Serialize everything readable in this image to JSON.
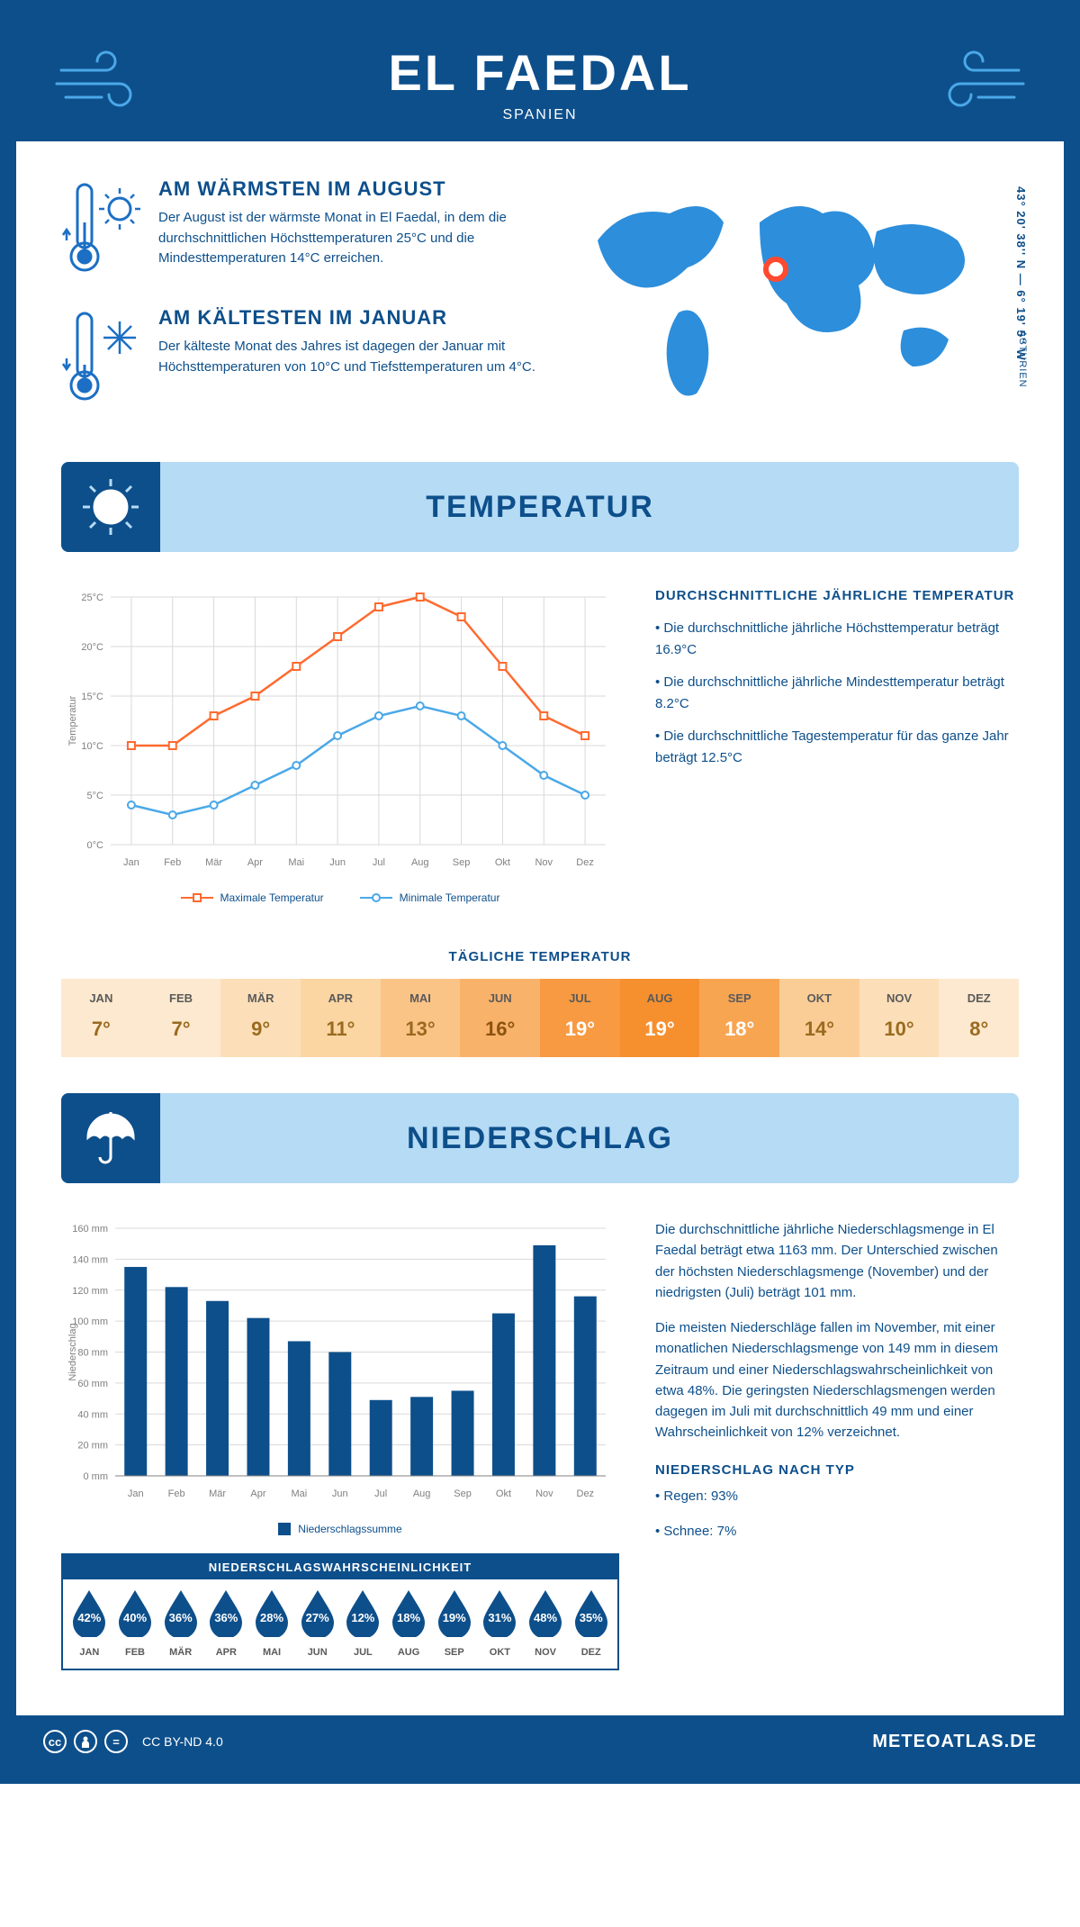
{
  "header": {
    "title": "EL FAEDAL",
    "subtitle": "SPANIEN"
  },
  "facts": {
    "warm": {
      "title": "AM WÄRMSTEN IM AUGUST",
      "text": "Der August ist der wärmste Monat in El Faedal, in dem die durchschnittlichen Höchsttemperaturen 25°C und die Mindesttemperaturen 14°C erreichen."
    },
    "cold": {
      "title": "AM KÄLTESTEN IM JANUAR",
      "text": "Der kälteste Monat des Jahres ist dagegen der Januar mit Höchsttemperaturen von 10°C und Tiefsttemperaturen um 4°C."
    }
  },
  "map": {
    "coords": "43° 20' 38'' N — 6° 19' 5'' W",
    "region": "ASTURIEN"
  },
  "sections": {
    "temp": "TEMPERATUR",
    "precip": "NIEDERSCHLAG"
  },
  "temp_chart": {
    "type": "line",
    "months": [
      "Jan",
      "Feb",
      "Mär",
      "Apr",
      "Mai",
      "Jun",
      "Jul",
      "Aug",
      "Sep",
      "Okt",
      "Nov",
      "Dez"
    ],
    "max": [
      10,
      10,
      13,
      15,
      18,
      21,
      24,
      25,
      23,
      18,
      13,
      11
    ],
    "min": [
      4,
      3,
      4,
      6,
      8,
      11,
      13,
      14,
      13,
      10,
      7,
      5
    ],
    "ylim": [
      0,
      25
    ],
    "ytick_step": 5,
    "ylabel": "Temperatur",
    "max_color": "#ff6a2f",
    "min_color": "#4aa8e8",
    "grid_color": "#d9d9d9",
    "axis_color": "#808080",
    "legend": {
      "max": "Maximale Temperatur",
      "min": "Minimale Temperatur"
    }
  },
  "temp_info": {
    "title": "DURCHSCHNITTLICHE JÄHRLICHE TEMPERATUR",
    "b1": "• Die durchschnittliche jährliche Höchsttemperatur beträgt 16.9°C",
    "b2": "• Die durchschnittliche jährliche Mindesttemperatur beträgt 8.2°C",
    "b3": "• Die durchschnittliche Tagestemperatur für das ganze Jahr beträgt 12.5°C"
  },
  "daily": {
    "title": "TÄGLICHE TEMPERATUR",
    "months": [
      "JAN",
      "FEB",
      "MÄR",
      "APR",
      "MAI",
      "JUN",
      "JUL",
      "AUG",
      "SEP",
      "OKT",
      "NOV",
      "DEZ"
    ],
    "values": [
      "7°",
      "7°",
      "9°",
      "11°",
      "13°",
      "16°",
      "19°",
      "19°",
      "18°",
      "14°",
      "10°",
      "8°"
    ],
    "bg_colors": [
      "#fde9cf",
      "#fde9cf",
      "#fcdfb8",
      "#fbd5a2",
      "#fac487",
      "#f9b26a",
      "#f79a42",
      "#f6902f",
      "#f8a552",
      "#fbcd96",
      "#fcdfb8",
      "#fde9cf"
    ],
    "text_colors": [
      "#9a6a1f",
      "#9a6a1f",
      "#9a6a1f",
      "#9a6a1f",
      "#9a6a1f",
      "#8a5410",
      "#ffffff",
      "#ffffff",
      "#ffffff",
      "#9a6a1f",
      "#9a6a1f",
      "#9a6a1f"
    ]
  },
  "precip_chart": {
    "type": "bar",
    "months": [
      "Jan",
      "Feb",
      "Mär",
      "Apr",
      "Mai",
      "Jun",
      "Jul",
      "Aug",
      "Sep",
      "Okt",
      "Nov",
      "Dez"
    ],
    "values": [
      135,
      122,
      113,
      102,
      87,
      80,
      49,
      51,
      55,
      105,
      149,
      116
    ],
    "ylim": [
      0,
      160
    ],
    "ytick_step": 20,
    "unit": "mm",
    "ylabel": "Niederschlag",
    "bar_color": "#0d4f8b",
    "grid_color": "#d9d9d9",
    "axis_color": "#808080",
    "legend": "Niederschlagssumme"
  },
  "precip_text": {
    "p1": "Die durchschnittliche jährliche Niederschlagsmenge in El Faedal beträgt etwa 1163 mm. Der Unterschied zwischen der höchsten Niederschlagsmenge (November) und der niedrigsten (Juli) beträgt 101 mm.",
    "p2": "Die meisten Niederschläge fallen im November, mit einer monatlichen Niederschlagsmenge von 149 mm in diesem Zeitraum und einer Niederschlagswahrscheinlichkeit von etwa 48%. Die geringsten Niederschlagsmengen werden dagegen im Juli mit durchschnittlich 49 mm und einer Wahrscheinlichkeit von 12% verzeichnet.",
    "type_title": "NIEDERSCHLAG NACH TYP",
    "t1": "• Regen: 93%",
    "t2": "• Schnee: 7%"
  },
  "prob": {
    "title": "NIEDERSCHLAGSWAHRSCHEINLICHKEIT",
    "months": [
      "JAN",
      "FEB",
      "MÄR",
      "APR",
      "MAI",
      "JUN",
      "JUL",
      "AUG",
      "SEP",
      "OKT",
      "NOV",
      "DEZ"
    ],
    "values": [
      "42%",
      "40%",
      "36%",
      "36%",
      "28%",
      "27%",
      "12%",
      "18%",
      "19%",
      "31%",
      "48%",
      "35%"
    ],
    "drop_color": "#0d4f8b"
  },
  "footer": {
    "license": "CC BY-ND 4.0",
    "site": "METEOATLAS.DE"
  }
}
